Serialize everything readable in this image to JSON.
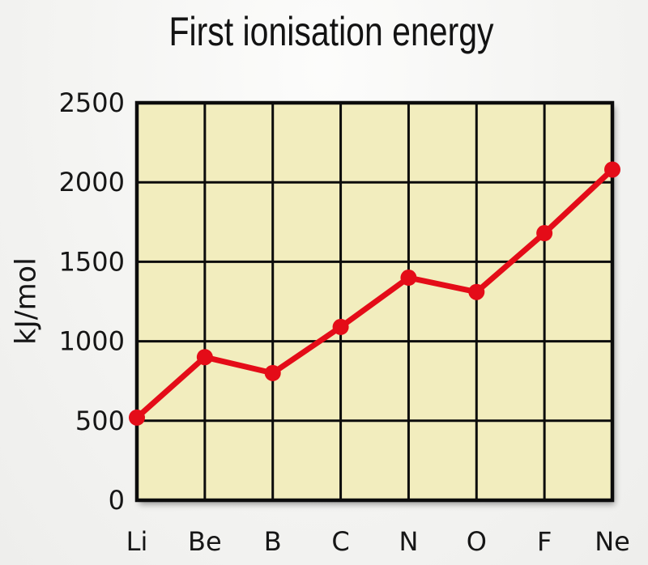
{
  "chart_data": {
    "type": "line",
    "title": "First ionisation energy",
    "ylabel": "kJ/mol",
    "xlabel": "",
    "categories": [
      "Li",
      "Be",
      "B",
      "C",
      "N",
      "O",
      "F",
      "Ne"
    ],
    "values": [
      520,
      900,
      800,
      1090,
      1400,
      1310,
      1680,
      2080
    ],
    "ylim": [
      0,
      2500
    ],
    "y_ticks": [
      0,
      500,
      1000,
      1500,
      2000,
      2500
    ],
    "grid": true,
    "legend": "none",
    "line_color": "#e40c18",
    "point_color": "#e40c18",
    "plot_bg": "#f2edbe",
    "grid_color": "#0c0c0c",
    "text_color": "#161616",
    "page_bg": "#f4f4f2"
  }
}
